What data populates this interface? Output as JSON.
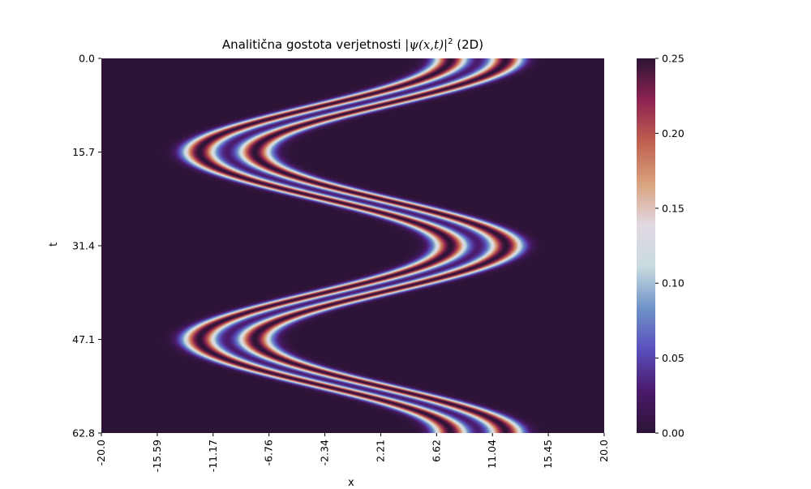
{
  "chart_data": {
    "type": "heatmap",
    "title_prefix": "Analitična gostota verjetnosti ",
    "title_math": "|ψ(x,t)|",
    "title_exponent": "2",
    "title_suffix": " (2D)",
    "xlabel": "x",
    "ylabel": "t",
    "x_tick_labels": [
      "-20.0",
      "-15.59",
      "-11.17",
      "-6.76",
      "-2.34",
      "2.21",
      "6.62",
      "11.04",
      "15.45",
      "20.0"
    ],
    "y_tick_labels": [
      "0.0",
      "15.7",
      "31.4",
      "47.1",
      "62.8"
    ],
    "xlim": [
      -20.0,
      20.0
    ],
    "ylim": [
      0.0,
      62.8
    ],
    "colorbar_tick_labels": [
      "0.00",
      "0.05",
      "0.10",
      "0.15",
      "0.20",
      "0.25"
    ],
    "colorbar_ticks": [
      0.0,
      0.05,
      0.1,
      0.15,
      0.2,
      0.25
    ],
    "color_range": [
      0.0,
      0.25
    ],
    "colormap": "twilight_shifted",
    "colormap_stops": [
      "#2d1436",
      "#4a1a6b",
      "#5a4fbd",
      "#6f94c8",
      "#c9dbe0",
      "#e2d9e2",
      "#d9a27e",
      "#c0604f",
      "#8e2352",
      "#2d1436"
    ],
    "wavefunction": {
      "center_amplitude": 10.0,
      "center_period": 31.4,
      "phase_at_t0": 10.0,
      "peak_offsets": [
        -2.2,
        2.2
      ],
      "peak_width": 1.3,
      "peak_value": 0.25
    }
  }
}
